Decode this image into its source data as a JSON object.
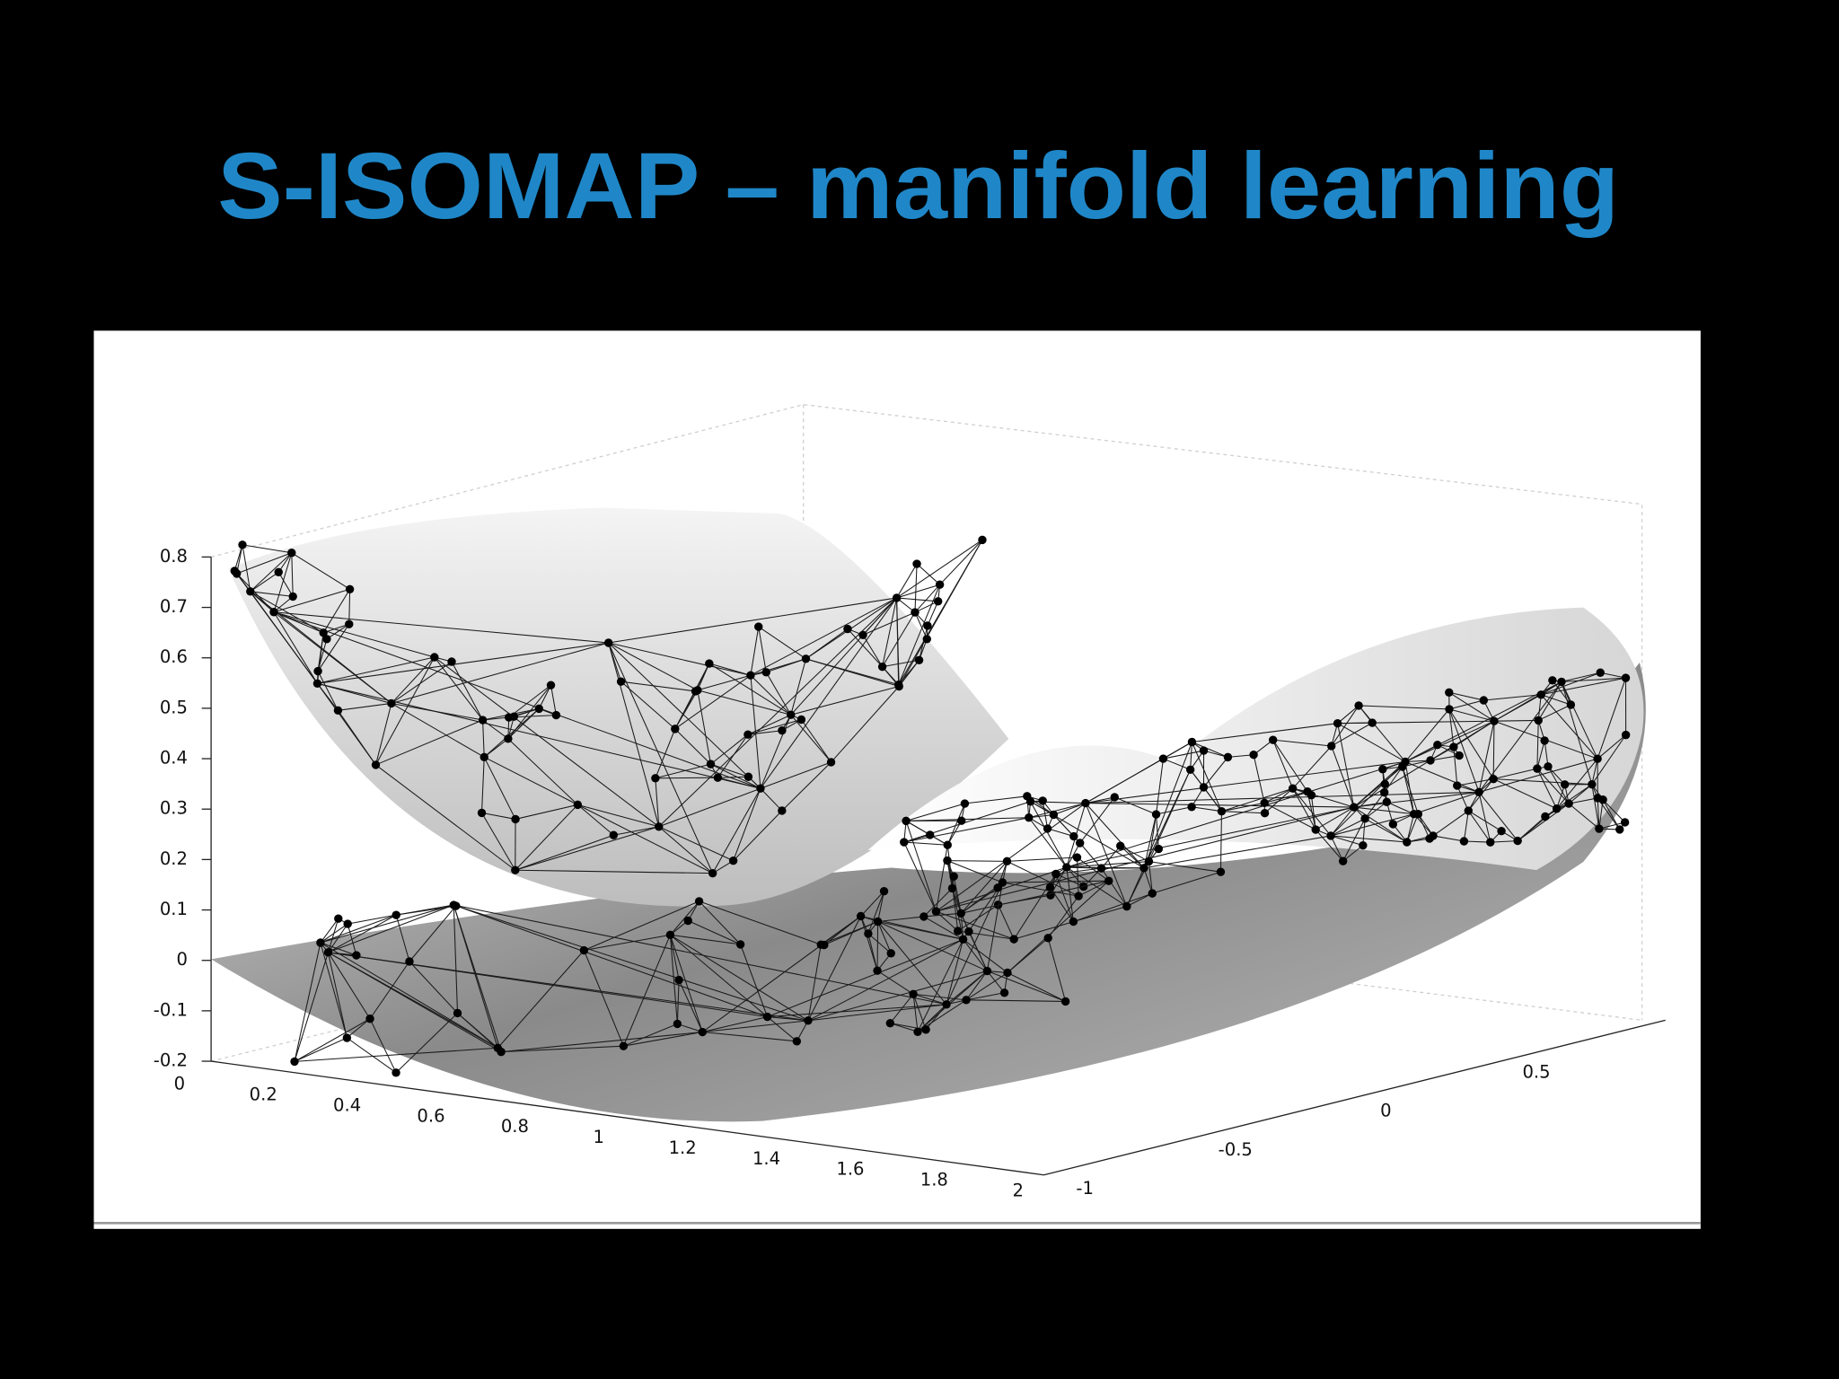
{
  "title": "S-ISOMAP – manifold learning",
  "figure": {
    "z_ticks": [
      "0.8",
      "0.7",
      "0.6",
      "0.5",
      "0.4",
      "0.3",
      "0.2",
      "0.1",
      "0",
      "-0.1",
      "-0.2"
    ],
    "x_ticks": [
      "0",
      "0.2",
      "0.4",
      "0.6",
      "0.8",
      "1",
      "1.2",
      "1.4",
      "1.6",
      "1.8",
      "2"
    ],
    "y_ticks": [
      "-1",
      "-0.5",
      "0",
      "0.5"
    ]
  }
}
